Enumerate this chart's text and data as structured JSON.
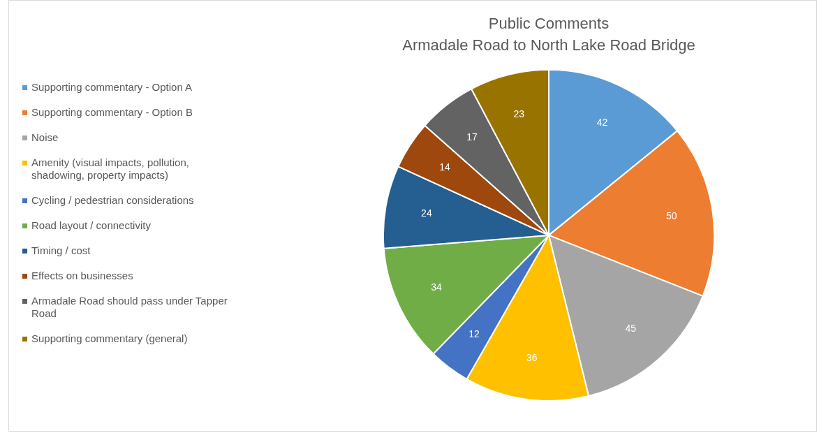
{
  "chart_data": {
    "type": "pie",
    "title": "Public Comments",
    "subtitle": "Armadale Road to North Lake Road Bridge",
    "categories": [
      "Supporting commentary - Option A",
      "Supporting commentary - Option B",
      "Noise",
      "Amenity (visual impacts, pollution, shadowing, property impacts)",
      "Cycling / pedestrian considerations",
      "Road layout / connectivity",
      "Timing / cost",
      "Effects on businesses",
      "Armadale Road should pass under Tapper Road",
      "Supporting commentary (general)"
    ],
    "values": [
      42,
      50,
      45,
      36,
      12,
      34,
      24,
      14,
      17,
      23
    ],
    "colors": [
      "#5b9bd5",
      "#ed7d31",
      "#a5a5a5",
      "#ffc000",
      "#4472c4",
      "#70ad47",
      "#255e91",
      "#9e480e",
      "#636363",
      "#997300"
    ],
    "data_labels": true,
    "legend": "left"
  }
}
